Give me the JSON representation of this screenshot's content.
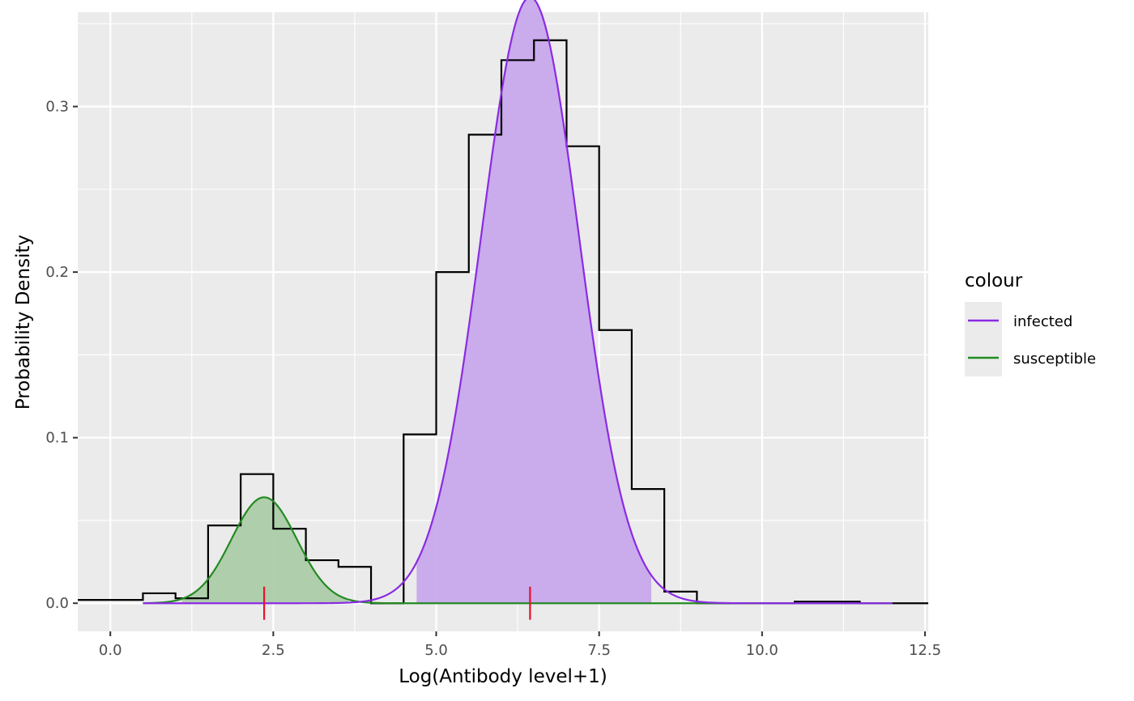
{
  "chart_data": {
    "type": "histogram-density",
    "xlabel": "Log(Antibody level+1)",
    "ylabel": "Probability Density",
    "xlim": [
      -0.5,
      12.55
    ],
    "ylim": [
      -0.017,
      0.357
    ],
    "x_ticks": [
      0.0,
      2.5,
      5.0,
      7.5,
      10.0,
      12.5
    ],
    "x_tick_labels": [
      "0.0",
      "2.5",
      "5.0",
      "7.5",
      "10.0",
      "12.5"
    ],
    "y_ticks": [
      0.0,
      0.1,
      0.2,
      0.3
    ],
    "y_tick_labels": [
      "0.0",
      "0.1",
      "0.2",
      "0.3"
    ],
    "grid": true,
    "legend": {
      "title": "colour",
      "position": "right",
      "entries": [
        {
          "label": "infected",
          "color": "#8A2BE2"
        },
        {
          "label": "susceptible",
          "color": "#228B22"
        }
      ]
    },
    "histogram": {
      "color": "#000000",
      "bin_width": 0.5,
      "steps": [
        {
          "x0": -0.5,
          "x1": 0.5,
          "y": 0.002
        },
        {
          "x0": 0.5,
          "x1": 1.0,
          "y": 0.006
        },
        {
          "x0": 1.0,
          "x1": 1.5,
          "y": 0.003
        },
        {
          "x0": 1.5,
          "x1": 2.0,
          "y": 0.047
        },
        {
          "x0": 2.0,
          "x1": 2.5,
          "y": 0.078
        },
        {
          "x0": 2.5,
          "x1": 3.0,
          "y": 0.045
        },
        {
          "x0": 3.0,
          "x1": 3.5,
          "y": 0.026
        },
        {
          "x0": 3.5,
          "x1": 4.0,
          "y": 0.022
        },
        {
          "x0": 4.0,
          "x1": 4.5,
          "y": 0.0
        },
        {
          "x0": 4.5,
          "x1": 5.0,
          "y": 0.102
        },
        {
          "x0": 5.0,
          "x1": 5.5,
          "y": 0.2
        },
        {
          "x0": 5.5,
          "x1": 6.0,
          "y": 0.283
        },
        {
          "x0": 6.0,
          "x1": 6.5,
          "y": 0.328
        },
        {
          "x0": 6.5,
          "x1": 7.0,
          "y": 0.34
        },
        {
          "x0": 7.0,
          "x1": 7.5,
          "y": 0.276
        },
        {
          "x0": 7.5,
          "x1": 8.0,
          "y": 0.165
        },
        {
          "x0": 8.0,
          "x1": 8.5,
          "y": 0.069
        },
        {
          "x0": 8.5,
          "x1": 9.0,
          "y": 0.007
        },
        {
          "x0": 9.0,
          "x1": 10.5,
          "y": 0.0
        },
        {
          "x0": 10.5,
          "x1": 11.5,
          "y": 0.001
        },
        {
          "x0": 11.5,
          "x1": 12.55,
          "y": 0.0
        }
      ]
    },
    "series": [
      {
        "name": "infected",
        "color": "#8A2BE2",
        "fill_color": "#C8A8EC",
        "peak": 0.366,
        "mean": 6.44,
        "sd": 0.75,
        "x_range": [
          0.5,
          12.0
        ],
        "shade_range": [
          4.7,
          8.3
        ]
      },
      {
        "name": "susceptible",
        "color": "#228B22",
        "fill_color": "#ACCCA8",
        "peak": 0.064,
        "mean": 2.36,
        "sd": 0.5,
        "x_range": [
          0.5,
          12.0
        ],
        "shade_range": [
          1.1,
          3.65
        ]
      }
    ],
    "mean_markers": {
      "color": "#E8102A",
      "x": [
        2.36,
        6.44
      ]
    }
  }
}
